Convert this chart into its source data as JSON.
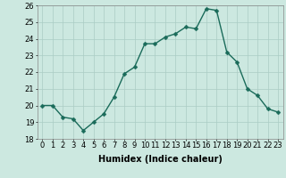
{
  "x": [
    0,
    1,
    2,
    3,
    4,
    5,
    6,
    7,
    8,
    9,
    10,
    11,
    12,
    13,
    14,
    15,
    16,
    17,
    18,
    19,
    20,
    21,
    22,
    23
  ],
  "y": [
    20.0,
    20.0,
    19.3,
    19.2,
    18.5,
    19.0,
    19.5,
    20.5,
    21.9,
    22.3,
    23.7,
    23.7,
    24.1,
    24.3,
    24.7,
    24.6,
    25.8,
    25.7,
    23.2,
    22.6,
    21.0,
    20.6,
    19.8,
    19.6
  ],
  "line_color": "#1a6b5a",
  "marker_color": "#1a6b5a",
  "bg_color": "#cce8e0",
  "grid_color": "#aaccC4",
  "xlabel": "Humidex (Indice chaleur)",
  "ylim": [
    18,
    26
  ],
  "xlim_min": -0.5,
  "xlim_max": 23.5,
  "yticks": [
    18,
    19,
    20,
    21,
    22,
    23,
    24,
    25,
    26
  ],
  "xticks": [
    0,
    1,
    2,
    3,
    4,
    5,
    6,
    7,
    8,
    9,
    10,
    11,
    12,
    13,
    14,
    15,
    16,
    17,
    18,
    19,
    20,
    21,
    22,
    23
  ],
  "xlabel_fontsize": 7,
  "tick_fontsize": 6,
  "line_width": 1.0,
  "marker_size": 2.5
}
